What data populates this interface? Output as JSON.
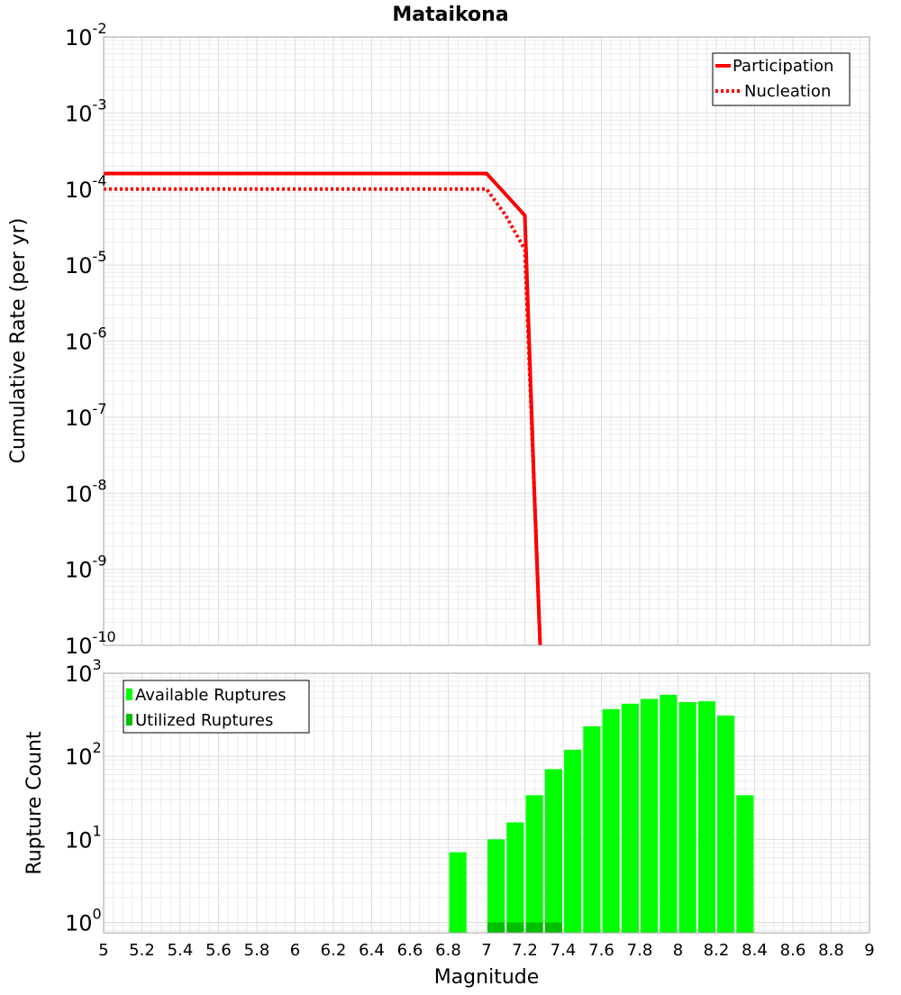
{
  "chart_data": [
    {
      "type": "line",
      "title": "Mataikona",
      "xlabel": "",
      "ylabel": "Cumulative Rate (per yr)",
      "xlim": [
        5,
        9
      ],
      "ylim": [
        1e-10,
        0.01
      ],
      "yscale": "log",
      "y_tick_labels": [
        {
          "base": "10",
          "exp": "-2"
        },
        {
          "base": "10",
          "exp": "-3"
        },
        {
          "base": "10",
          "exp": "-4"
        },
        {
          "base": "10",
          "exp": "-5"
        },
        {
          "base": "10",
          "exp": "-6"
        },
        {
          "base": "10",
          "exp": "-7"
        },
        {
          "base": "10",
          "exp": "-8"
        },
        {
          "base": "10",
          "exp": "-9"
        },
        {
          "base": "10",
          "exp": "-10"
        }
      ],
      "grid": true,
      "legend_position": "top-right",
      "series": [
        {
          "name": "Participation",
          "color": "#ff0000",
          "style": "solid",
          "x": [
            5.0,
            7.0,
            7.1,
            7.2,
            7.25,
            7.28
          ],
          "y": [
            0.00016,
            0.00016,
            8.5e-05,
            4.5e-05,
            1e-08,
            1e-10
          ]
        },
        {
          "name": "Nucleation",
          "color": "#ff0000",
          "style": "dotted",
          "x": [
            5.0,
            7.0,
            7.1,
            7.2,
            7.25,
            7.28
          ],
          "y": [
            0.0001,
            0.0001,
            4.5e-05,
            1.6e-05,
            1e-08,
            1e-10
          ]
        }
      ]
    },
    {
      "type": "bar",
      "title": "",
      "xlabel": "Magnitude",
      "ylabel": "Rupture Count",
      "xlim": [
        5,
        9
      ],
      "ylim": [
        0.75,
        1000
      ],
      "yscale": "log",
      "x_ticks": [
        "5",
        "5.2",
        "5.4",
        "5.6",
        "5.8",
        "6",
        "6.2",
        "6.4",
        "6.6",
        "6.8",
        "7",
        "7.2",
        "7.4",
        "7.6",
        "7.8",
        "8",
        "8.2",
        "8.4",
        "8.6",
        "8.8",
        "9"
      ],
      "y_tick_labels": [
        {
          "base": "10",
          "exp": "3"
        },
        {
          "base": "10",
          "exp": "2"
        },
        {
          "base": "10",
          "exp": "1"
        },
        {
          "base": "10",
          "exp": "0"
        }
      ],
      "grid": true,
      "legend_position": "top-left",
      "bar_width": 0.09,
      "series": [
        {
          "name": "Available Ruptures",
          "color": "#00ff00",
          "x": [
            6.85,
            7.05,
            7.15,
            7.25,
            7.35,
            7.45,
            7.55,
            7.65,
            7.75,
            7.85,
            7.95,
            8.05,
            8.15,
            8.25,
            8.35
          ],
          "values": [
            7,
            10,
            16,
            34,
            70,
            120,
            230,
            370,
            430,
            490,
            550,
            450,
            460,
            310,
            34
          ]
        },
        {
          "name": "Utilized Ruptures",
          "color": "#00c000",
          "x": [
            7.05,
            7.15,
            7.25,
            7.35
          ],
          "values": [
            1,
            1,
            1,
            1
          ]
        }
      ]
    }
  ]
}
